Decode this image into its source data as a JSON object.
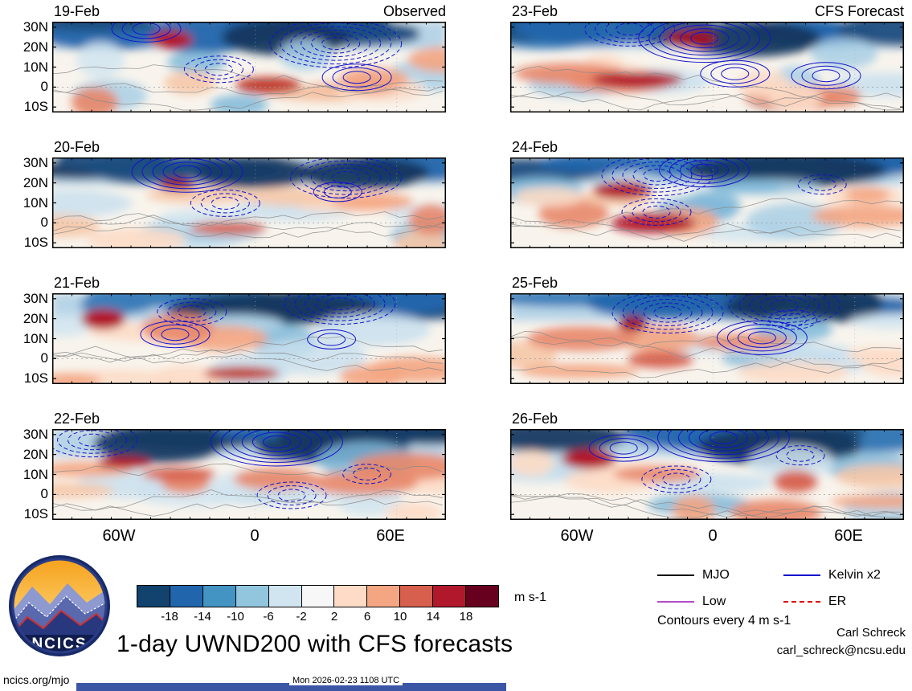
{
  "chart_data": {
    "type": "heatmap",
    "title": "1-day UWND200 with CFS forecasts",
    "units": "m s-1",
    "contour_note": "Contours every 4 m s-1",
    "columns": [
      {
        "title": "Observed",
        "dates": [
          "19-Feb",
          "20-Feb",
          "21-Feb",
          "22-Feb"
        ]
      },
      {
        "title": "CFS Forecast",
        "dates": [
          "23-Feb",
          "24-Feb",
          "25-Feb",
          "26-Feb"
        ]
      }
    ],
    "lat_ticks": [
      "30N",
      "20N",
      "10N",
      "0",
      "10S"
    ],
    "lon_ticks": [
      "60W",
      "0",
      "60E"
    ],
    "colorbar_levels": [
      "-18",
      "-14",
      "-10",
      "-6",
      "-2",
      "2",
      "6",
      "10",
      "14",
      "18"
    ],
    "colorbar_colors": [
      "#12426e",
      "#2166ac",
      "#4393c3",
      "#92c5de",
      "#d1e5f0",
      "#f7f7f7",
      "#fddbc7",
      "#f4a582",
      "#d6604d",
      "#b2182b",
      "#67001f"
    ],
    "legend": [
      {
        "label": "MJO",
        "color": "#000000",
        "style": "solid"
      },
      {
        "label": "Kelvin x2",
        "color": "#0000cc",
        "style": "solid"
      },
      {
        "label": "Low",
        "color": "#b34dcc",
        "style": "solid"
      },
      {
        "label": "ER",
        "color": "#dd1111",
        "style": "dashed"
      }
    ]
  },
  "logo": {
    "text": "NCICS"
  },
  "footer": {
    "left": "ncics.org/mjo",
    "center": "Mon 2026-02-23 1108 UTC",
    "credit_name": "Carl Schreck",
    "credit_email": "carl_schreck@ncsu.edu"
  }
}
